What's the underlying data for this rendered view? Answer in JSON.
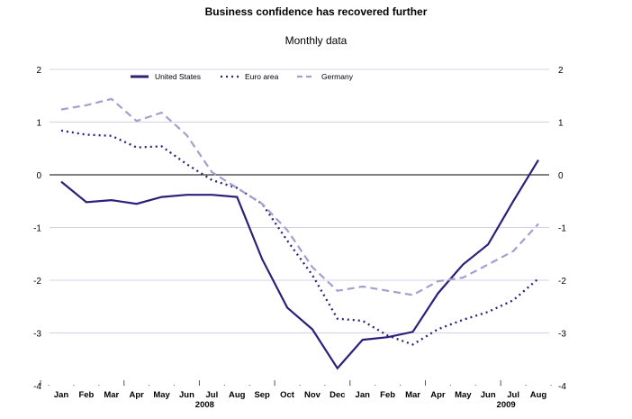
{
  "chart_data": {
    "type": "line",
    "title": "Business confidence has recovered further",
    "subtitle": "Monthly data",
    "categories": [
      "Jan",
      "Feb",
      "Mar",
      "Apr",
      "May",
      "Jun",
      "Jul",
      "Aug",
      "Sep",
      "Oct",
      "Nov",
      "Dec",
      "Jan",
      "Feb",
      "Mar",
      "Apr",
      "May",
      "Jun",
      "Jul",
      "Aug"
    ],
    "year_labels": [
      {
        "label": "2008",
        "index": 6
      },
      {
        "label": "2009",
        "index": 18
      }
    ],
    "ylim": [
      -4,
      2
    ],
    "yticks": [
      2,
      1,
      0,
      -1,
      -2,
      -3,
      -4
    ],
    "grid": true,
    "legend": "top",
    "series": [
      {
        "name": "United States",
        "style": "solid",
        "color": "#2e1f7a",
        "values": [
          -0.13,
          -0.52,
          -0.48,
          -0.55,
          -0.42,
          -0.38,
          -0.38,
          -0.42,
          -1.6,
          -2.52,
          -2.93,
          -3.67,
          -3.13,
          -3.08,
          -2.98,
          -2.25,
          -1.7,
          -1.32,
          -0.5,
          0.28
        ]
      },
      {
        "name": "Euro area",
        "style": "dotted",
        "color": "#2e1f7a",
        "values": [
          0.84,
          0.76,
          0.74,
          0.52,
          0.54,
          0.2,
          -0.1,
          -0.25,
          -0.55,
          -1.25,
          -1.9,
          -2.73,
          -2.77,
          -3.05,
          -3.22,
          -2.93,
          -2.75,
          -2.6,
          -2.38,
          -1.97
        ]
      },
      {
        "name": "Germany",
        "style": "dashed",
        "color": "#a59fcf",
        "values": [
          1.24,
          1.32,
          1.44,
          1.02,
          1.18,
          0.75,
          0.05,
          -0.25,
          -0.55,
          -1.05,
          -1.75,
          -2.2,
          -2.12,
          -2.2,
          -2.28,
          -2.02,
          -1.95,
          -1.7,
          -1.45,
          -0.93
        ]
      }
    ]
  }
}
